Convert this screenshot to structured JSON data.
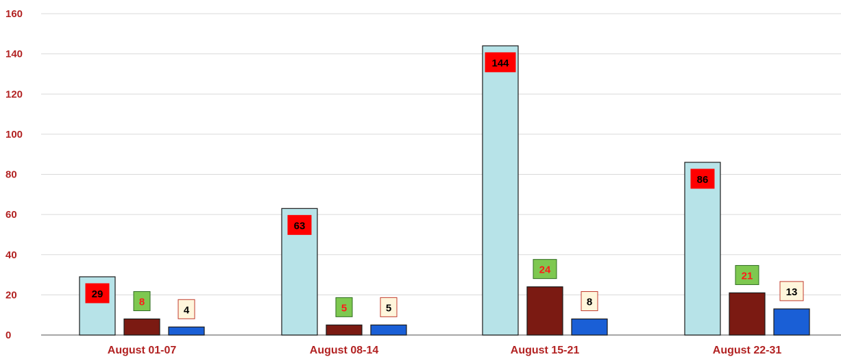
{
  "chart_data": {
    "type": "bar",
    "title": "",
    "xlabel": "",
    "ylabel": "",
    "ylim": [
      0,
      160
    ],
    "yticks": [
      0,
      20,
      40,
      60,
      80,
      100,
      120,
      140,
      160
    ],
    "grid": true,
    "categories": [
      "August 01-07",
      "August 08-14",
      "August 15-21",
      "August 22-31"
    ],
    "series": [
      {
        "values": [
          29,
          63,
          144,
          86
        ],
        "color": "#b7e3e8",
        "label_bg": "#ff0000",
        "label_text": "#000000"
      },
      {
        "values": [
          8,
          5,
          24,
          21
        ],
        "color": "#7b1a12",
        "label_bg": "#7ec850",
        "label_text": "#ff1a1a"
      },
      {
        "values": [
          4,
          5,
          8,
          13
        ],
        "color": "#1a5fd6",
        "label_bg": "#fff6dc",
        "label_text": "#000000"
      }
    ],
    "colors": {
      "axis_text": "#b22222",
      "grid": "#d9d9d9",
      "axis_line": "#888888"
    }
  }
}
